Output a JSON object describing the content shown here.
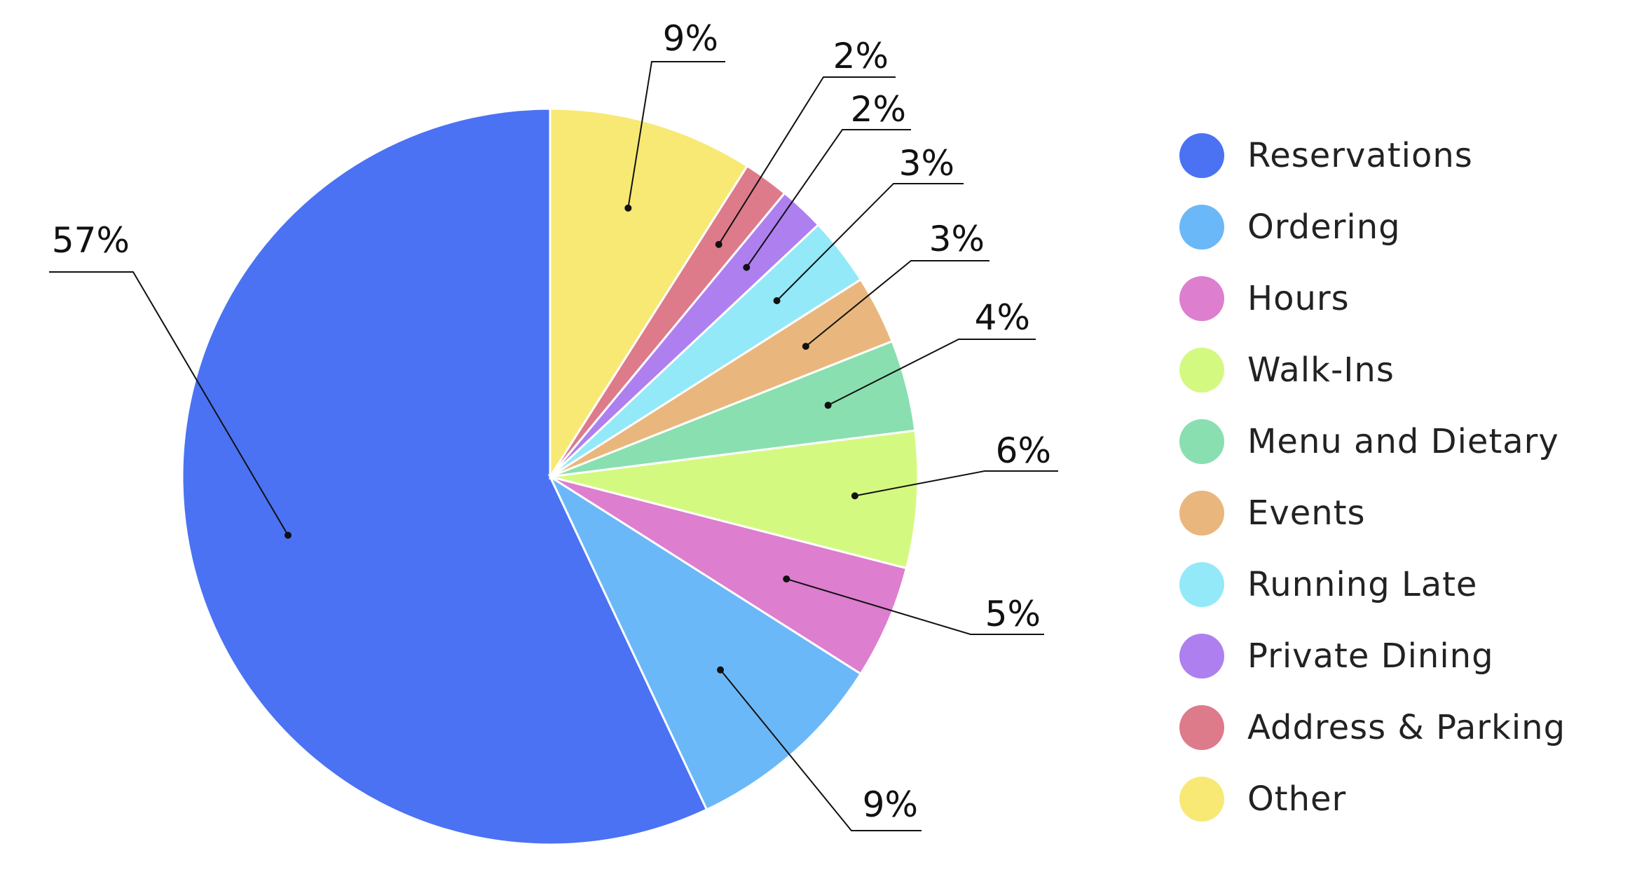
{
  "chart_data": {
    "type": "pie",
    "title": "",
    "start_angle_deg": 0,
    "direction": "counterclockwise",
    "legend_position": "right",
    "slices": [
      {
        "name": "Reservations",
        "value": 57,
        "label": "57%",
        "color": "#4A72F3"
      },
      {
        "name": "Ordering",
        "value": 9,
        "label": "9%",
        "color": "#6BB8F8"
      },
      {
        "name": "Hours",
        "value": 5,
        "label": "5%",
        "color": "#DD7ECF"
      },
      {
        "name": "Walk-Ins",
        "value": 6,
        "label": "6%",
        "color": "#D4F981"
      },
      {
        "name": "Menu and Dietary",
        "value": 4,
        "label": "4%",
        "color": "#89DFB0"
      },
      {
        "name": "Events",
        "value": 3,
        "label": "3%",
        "color": "#E9B77D"
      },
      {
        "name": "Running Late",
        "value": 3,
        "label": "3%",
        "color": "#93E9F8"
      },
      {
        "name": "Private Dining",
        "value": 2,
        "label": "2%",
        "color": "#AE80EF"
      },
      {
        "name": "Address & Parking",
        "value": 2,
        "label": "2%",
        "color": "#DD7B8B"
      },
      {
        "name": "Other",
        "value": 9,
        "label": "9%",
        "color": "#F7E974"
      }
    ]
  }
}
